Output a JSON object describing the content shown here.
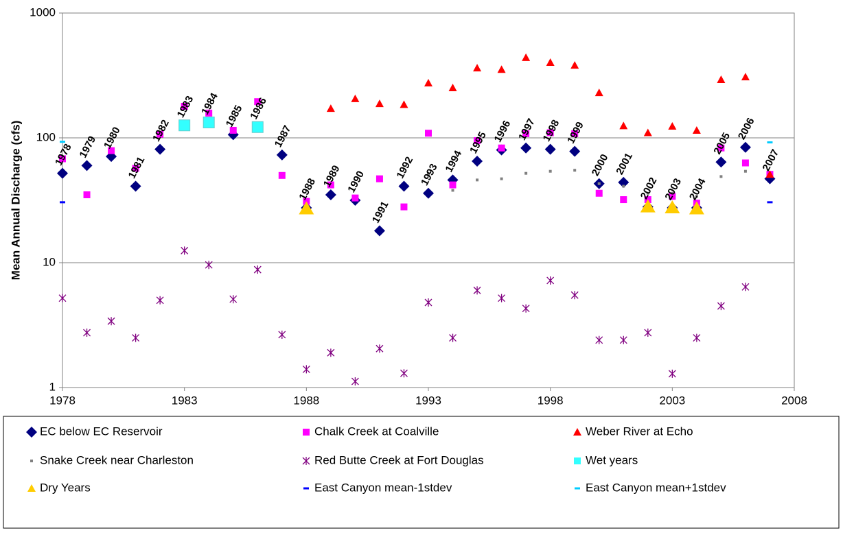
{
  "chart_data": {
    "type": "scatter",
    "y_label": "Mean Annual Discharge (cfs)",
    "log_y": true,
    "grid": true,
    "xlim": [
      1978,
      2008
    ],
    "xticks": [
      1978,
      1983,
      1988,
      1993,
      1998,
      2003,
      2008
    ],
    "ylim": [
      1,
      1000
    ],
    "yticks": [
      1,
      10,
      100,
      1000
    ],
    "point_labels_series": 0,
    "series": [
      {
        "name": "EC below EC Reservoir",
        "color": "#000080",
        "marker": "diamond",
        "x": [
          1978,
          1979,
          1980,
          1981,
          1982,
          1983,
          1984,
          1985,
          1986,
          1987,
          1988,
          1989,
          1990,
          1991,
          1992,
          1993,
          1994,
          1995,
          1996,
          1997,
          1998,
          1999,
          2000,
          2001,
          2002,
          2003,
          2004,
          2005,
          2006,
          2007
        ],
        "values": [
          52,
          60,
          71,
          41,
          81,
          126,
          133,
          106,
          122,
          73,
          27.5,
          35,
          31.6,
          18,
          41,
          36,
          46,
          65,
          80,
          83,
          81,
          78,
          43,
          44,
          28,
          27.5,
          27.5,
          64,
          84,
          47
        ]
      },
      {
        "name": "Chalk Creek at Coalville",
        "color": "#ff00ff",
        "marker": "square",
        "x": [
          1978,
          1979,
          1980,
          1981,
          1982,
          1983,
          1984,
          1985,
          1986,
          1987,
          1988,
          1989,
          1990,
          1991,
          1992,
          1993,
          1994,
          1995,
          1996,
          1997,
          1998,
          1999,
          2000,
          2001,
          2002,
          2003,
          2004,
          2005,
          2006,
          2007
        ],
        "values": [
          68,
          35,
          79,
          57,
          107,
          179,
          158,
          115,
          195,
          50,
          31,
          42,
          33,
          47,
          28,
          109,
          42,
          95,
          83,
          108,
          110,
          108,
          36,
          32,
          32,
          34,
          30,
          83,
          63,
          51
        ]
      },
      {
        "name": "Weber River at Echo",
        "color": "#ff0000",
        "marker": "triangle",
        "x": [
          1989,
          1990,
          1991,
          1992,
          1993,
          1994,
          1995,
          1996,
          1997,
          1998,
          1999,
          2000,
          2001,
          2002,
          2003,
          2004,
          2005,
          2006,
          2007
        ],
        "values": [
          172,
          206,
          188,
          185,
          275,
          252,
          363,
          353,
          440,
          402,
          382,
          230,
          125,
          110,
          124,
          115,
          293,
          308,
          51
        ]
      },
      {
        "name": "Snake Creek near Charleston",
        "color": "#808080",
        "marker": "dot",
        "x": [
          1993,
          1994,
          1995,
          1996,
          1997,
          1998,
          1999,
          2000,
          2001,
          2002,
          2003,
          2004,
          2005,
          2006,
          2007
        ],
        "values": [
          51,
          38,
          46,
          47,
          52,
          54,
          55,
          43,
          41,
          36,
          36,
          34,
          49,
          54,
          50
        ]
      },
      {
        "name": "Red Butte Creek at Fort Douglas",
        "color": "#800080",
        "marker": "star",
        "x": [
          1978,
          1979,
          1980,
          1981,
          1982,
          1983,
          1984,
          1985,
          1986,
          1987,
          1988,
          1989,
          1990,
          1991,
          1992,
          1993,
          1994,
          1995,
          1996,
          1997,
          1998,
          1999,
          2000,
          2001,
          2002,
          2003,
          2004,
          2005,
          2006
        ],
        "values": [
          5.2,
          2.75,
          3.4,
          2.5,
          5.0,
          12.5,
          9.6,
          5.1,
          8.8,
          2.65,
          1.4,
          1.9,
          1.12,
          2.05,
          1.3,
          4.8,
          2.5,
          6.0,
          5.2,
          4.3,
          7.2,
          5.5,
          2.4,
          2.4,
          2.75,
          1.29,
          2.5,
          4.5,
          6.4
        ]
      },
      {
        "name": "Wet years",
        "color": "#33ffff",
        "marker": "bigsquare",
        "x": [
          1983,
          1984,
          1986
        ],
        "values": [
          126,
          133,
          122
        ]
      },
      {
        "name": "Dry Years",
        "color": "#ffcc00",
        "marker": "bigtriangle",
        "x": [
          1988,
          2002,
          2003,
          2004
        ],
        "values": [
          27,
          28,
          27.5,
          27
        ]
      },
      {
        "name": "East Canyon mean-1stdev",
        "color": "#0000ff",
        "marker": "dash",
        "x": [
          1978,
          2007
        ],
        "values": [
          30.5,
          30.5
        ]
      },
      {
        "name": "East Canyon mean+1stdev",
        "color": "#00ccff",
        "marker": "dash",
        "x": [
          1978,
          2007
        ],
        "values": [
          93,
          92
        ]
      }
    ]
  }
}
